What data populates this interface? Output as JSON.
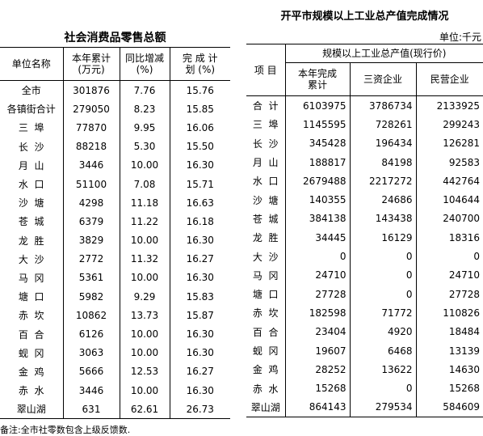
{
  "left": {
    "title": "社会消费品零售总额",
    "headers": [
      "单位名称",
      "本年累计\n(万元)",
      "同比增减\n(%)",
      "完 成 计\n划 (%)"
    ],
    "rows": [
      [
        "全市",
        "301876",
        "7.76",
        "15.76"
      ],
      [
        "各镇街合计",
        "279050",
        "8.23",
        "15.85"
      ],
      [
        "三  埠",
        "77870",
        "9.95",
        "16.06"
      ],
      [
        "长  沙",
        "88218",
        "5.30",
        "15.50"
      ],
      [
        "月  山",
        "3446",
        "10.00",
        "16.30"
      ],
      [
        "水  口",
        "51100",
        "7.08",
        "15.71"
      ],
      [
        "沙  塘",
        "4298",
        "11.18",
        "16.63"
      ],
      [
        "苍  城",
        "6379",
        "11.22",
        "16.18"
      ],
      [
        "龙  胜",
        "3829",
        "10.00",
        "16.30"
      ],
      [
        "大  沙",
        "2772",
        "11.32",
        "16.27"
      ],
      [
        "马  冈",
        "5361",
        "10.00",
        "16.30"
      ],
      [
        "塘  口",
        "5982",
        "9.29",
        "15.83"
      ],
      [
        "赤  坎",
        "10862",
        "13.73",
        "15.87"
      ],
      [
        "百  合",
        "6126",
        "10.00",
        "16.30"
      ],
      [
        "蚬  冈",
        "3063",
        "10.00",
        "16.30"
      ],
      [
        "金  鸡",
        "5666",
        "12.53",
        "16.27"
      ],
      [
        "赤  水",
        "3446",
        "10.00",
        "16.30"
      ],
      [
        "翠山湖",
        "631",
        "62.61",
        "26.73"
      ]
    ],
    "note": "备注:全市社零数包含上级反馈数."
  },
  "right": {
    "title": "开平市规模以上工业总产值完成情况",
    "unit": "单位:千元",
    "header_item": "项  目",
    "header_group": "规模以上工业总产值(现行价)",
    "headers": [
      "本年完成\n累计",
      "三资企业",
      "民营企业"
    ],
    "rows": [
      [
        "合  计",
        "6103975",
        "3786734",
        "2133925"
      ],
      [
        "三  埠",
        "1145595",
        "728261",
        "299243"
      ],
      [
        "长  沙",
        "345428",
        "196434",
        "126281"
      ],
      [
        "月  山",
        "188817",
        "84198",
        "92583"
      ],
      [
        "水  口",
        "2679488",
        "2217272",
        "442764"
      ],
      [
        "沙  塘",
        "140355",
        "24686",
        "104644"
      ],
      [
        "苍  城",
        "384138",
        "143438",
        "240700"
      ],
      [
        "龙  胜",
        "34445",
        "16129",
        "18316"
      ],
      [
        "大  沙",
        "0",
        "0",
        "0"
      ],
      [
        "马  冈",
        "24710",
        "0",
        "24710"
      ],
      [
        "塘  口",
        "27728",
        "0",
        "27728"
      ],
      [
        "赤  坎",
        "182598",
        "71772",
        "110826"
      ],
      [
        "百  合",
        "23404",
        "4920",
        "18484"
      ],
      [
        "蚬  冈",
        "19607",
        "6468",
        "13139"
      ],
      [
        "金  鸡",
        "28252",
        "13622",
        "14630"
      ],
      [
        "赤  水",
        "15268",
        "0",
        "15268"
      ],
      [
        "翠山湖",
        "864143",
        "279534",
        "584609"
      ]
    ]
  }
}
